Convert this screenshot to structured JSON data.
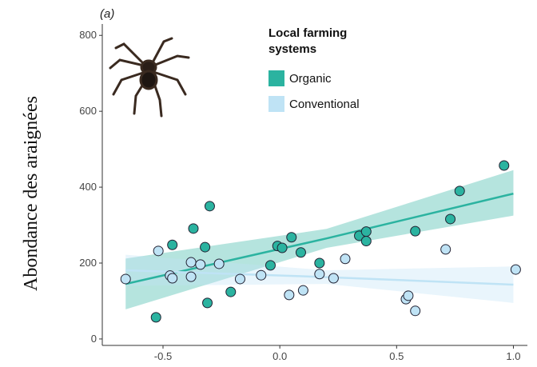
{
  "chart_data": {
    "type": "scatter",
    "panel_label": "(a)",
    "y_label": "Abondance des araignées",
    "legend_title": "Local farming systems",
    "xlim": [
      -0.76,
      1.06
    ],
    "ylim": [
      -17,
      830
    ],
    "xticks": [
      {
        "value": -0.5,
        "label": "-0.5"
      },
      {
        "value": 0,
        "label": "0.0"
      },
      {
        "value": 0.5,
        "label": "0.5"
      },
      {
        "value": 1,
        "label": "1.0"
      }
    ],
    "yticks": [
      0,
      200,
      400,
      600,
      800
    ],
    "series": [
      {
        "name": "Organic",
        "color": "#2bb3a0",
        "x": [
          -0.53,
          -0.46,
          -0.37,
          -0.32,
          -0.3,
          -0.31,
          -0.21,
          -0.04,
          -0.01,
          0.01,
          0.05,
          0.09,
          0.17,
          0.34,
          0.37,
          0.37,
          0.58,
          0.73,
          0.77,
          0.96
        ],
        "values": [
          57,
          248,
          291,
          242,
          350,
          95,
          124,
          194,
          245,
          240,
          268,
          228,
          200,
          272,
          283,
          258,
          284,
          316,
          390,
          457
        ],
        "fit": {
          "x": [
            -0.66,
            0.2,
            1.0
          ],
          "values": [
            145,
            265,
            383
          ],
          "lower": [
            78,
            240,
            325
          ],
          "upper": [
            212,
            290,
            445
          ]
        }
      },
      {
        "name": "Conventional",
        "color": "#bfe3f5",
        "x": [
          -0.66,
          -0.52,
          -0.47,
          -0.46,
          -0.38,
          -0.38,
          -0.34,
          -0.26,
          -0.17,
          -0.08,
          0.04,
          0.1,
          0.17,
          0.23,
          0.28,
          0.54,
          0.55,
          0.58,
          0.71,
          1.01
        ],
        "values": [
          158,
          232,
          167,
          160,
          202,
          164,
          196,
          198,
          158,
          168,
          116,
          128,
          171,
          160,
          211,
          105,
          114,
          74,
          236,
          183
        ],
        "fit": {
          "x": [
            -0.66,
            0.2,
            1.0
          ],
          "values": [
            181,
            163,
            143
          ],
          "lower": [
            140,
            145,
            95
          ],
          "upper": [
            222,
            181,
            191
          ]
        }
      }
    ]
  }
}
